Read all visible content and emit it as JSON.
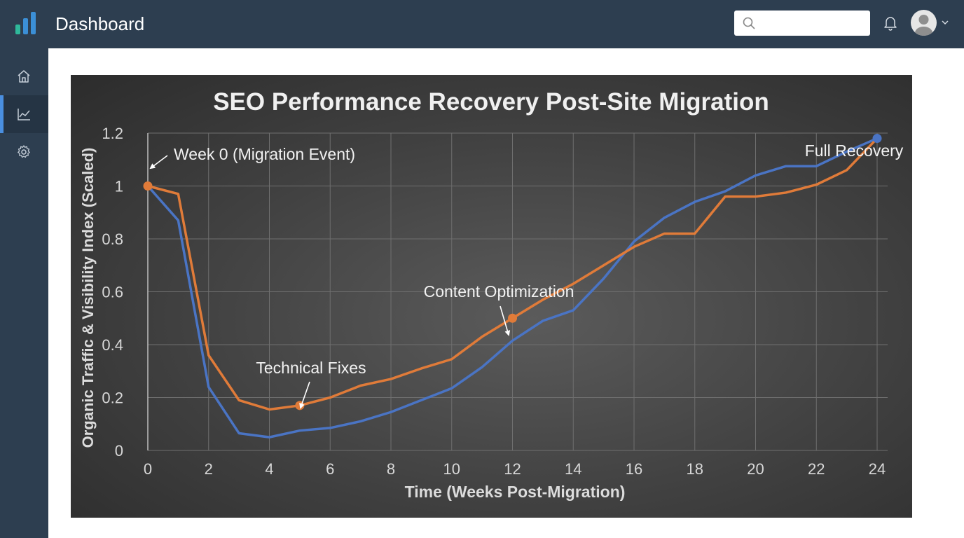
{
  "header": {
    "app_title": "Dashboard",
    "logo_icon": "bar-chart-logo-icon",
    "search": {
      "placeholder": "",
      "value": ""
    },
    "notification_icon": "bell-icon",
    "user_icon": "avatar-icon",
    "menu_icon": "chevron-down-icon"
  },
  "sidebar": {
    "items": [
      {
        "icon": "home-icon",
        "active": false
      },
      {
        "icon": "line-chart-icon",
        "active": true
      },
      {
        "icon": "gear-icon",
        "active": false
      }
    ]
  },
  "colors": {
    "chrome": "#2d3e50",
    "accent": "#4a8fe0",
    "series_blue": "#4a74c4",
    "series_orange": "#e07b39"
  },
  "chart_data": {
    "type": "line",
    "title": "SEO Performance Recovery Post-Site Migration",
    "xlabel": "Time (Weeks Post-Migration)",
    "ylabel": "Organic Traffic & Visibility Index (Scaled)",
    "xlim": [
      0,
      24
    ],
    "ylim": [
      0,
      1.2
    ],
    "x_ticks": [
      "0",
      "2",
      "4",
      "6",
      "8",
      "10",
      "12",
      "14",
      "16",
      "18",
      "20",
      "22",
      "24"
    ],
    "x_tick_values": [
      0,
      2,
      4,
      6,
      8,
      10,
      12,
      14,
      16,
      18,
      20,
      22,
      24
    ],
    "y_ticks": [
      "0",
      "0.2",
      "0.4",
      "0.6",
      "0.8",
      "1",
      "1.2"
    ],
    "y_tick_values": [
      0,
      0.2,
      0.4,
      0.6,
      0.8,
      1.0,
      1.2
    ],
    "grid": true,
    "legend": "none",
    "series": [
      {
        "color": "#4a74c4",
        "x": [
          0,
          1,
          2,
          3,
          4,
          5,
          6,
          7,
          8,
          9,
          10,
          11,
          12,
          13,
          14,
          15,
          16,
          17,
          18,
          19,
          20,
          21,
          22,
          23,
          24
        ],
        "y": [
          1.0,
          0.87,
          0.24,
          0.065,
          0.05,
          0.075,
          0.085,
          0.11,
          0.145,
          0.19,
          0.235,
          0.315,
          0.415,
          0.49,
          0.53,
          0.65,
          0.79,
          0.88,
          0.94,
          0.98,
          1.04,
          1.075,
          1.075,
          1.13,
          1.18
        ],
        "markers": [
          {
            "x": 24,
            "y": 1.18
          }
        ]
      },
      {
        "color": "#e07b39",
        "x": [
          0,
          1,
          2,
          3,
          4,
          5,
          6,
          7,
          8,
          9,
          10,
          11,
          12,
          13,
          14,
          15,
          16,
          17,
          18,
          19,
          20,
          21,
          22,
          23,
          24
        ],
        "y": [
          1.0,
          0.97,
          0.36,
          0.19,
          0.155,
          0.17,
          0.2,
          0.245,
          0.27,
          0.31,
          0.345,
          0.43,
          0.5,
          0.57,
          0.63,
          0.7,
          0.77,
          0.82,
          0.82,
          0.96,
          0.96,
          0.975,
          1.005,
          1.06,
          1.18
        ],
        "markers": [
          {
            "x": 0,
            "y": 1.0
          },
          {
            "x": 5,
            "y": 0.17
          },
          {
            "x": 12,
            "y": 0.5
          }
        ]
      }
    ],
    "annotations": [
      {
        "text": "Week 0 (Migration Event)",
        "x": 0,
        "y": 1.0
      },
      {
        "text": "Technical Fixes",
        "x": 5,
        "y": 0.17
      },
      {
        "text": "Content Optimization",
        "x": 12,
        "y": 0.5
      },
      {
        "text": "Full Recovery",
        "x": 24,
        "y": 1.18
      }
    ]
  }
}
